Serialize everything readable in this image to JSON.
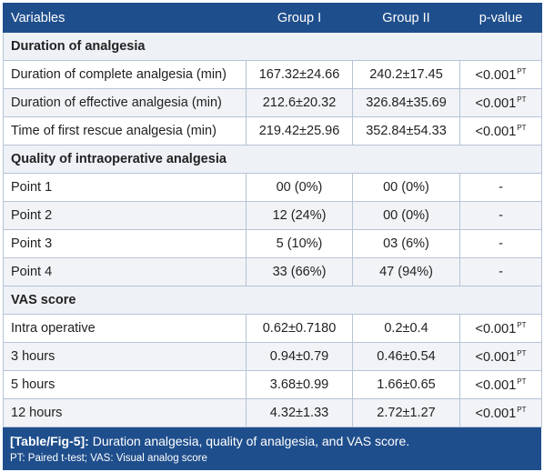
{
  "table": {
    "headers": [
      "Variables",
      "Group I",
      "Group II",
      "p-value"
    ],
    "rows": [
      {
        "type": "section",
        "label": "Duration of analgesia"
      },
      {
        "type": "data",
        "label": "Duration of complete analgesia (min)",
        "g1": "167.32±24.66",
        "g2": "240.2±17.45",
        "p": "<0.001",
        "p_sup": "PT"
      },
      {
        "type": "data",
        "label": "Duration of effective analgesia (min)",
        "g1": "212.6±20.32",
        "g2": "326.84±35.69",
        "p": "<0.001",
        "p_sup": "PT"
      },
      {
        "type": "data",
        "label": "Time of first rescue analgesia (min)",
        "g1": "219.42±25.96",
        "g2": "352.84±54.33",
        "p": "<0.001",
        "p_sup": "PT"
      },
      {
        "type": "section",
        "label": "Quality of intraoperative analgesia"
      },
      {
        "type": "data",
        "label": "Point 1",
        "g1": "00 (0%)",
        "g2": "00 (0%)",
        "p": "-",
        "p_sup": ""
      },
      {
        "type": "data",
        "label": "Point 2",
        "g1": "12 (24%)",
        "g2": "00 (0%)",
        "p": "-",
        "p_sup": ""
      },
      {
        "type": "data",
        "label": "Point 3",
        "g1": "5 (10%)",
        "g2": "03 (6%)",
        "p": "-",
        "p_sup": ""
      },
      {
        "type": "data",
        "label": "Point 4",
        "g1": "33 (66%)",
        "g2": "47 (94%)",
        "p": "-",
        "p_sup": ""
      },
      {
        "type": "section",
        "label": "VAS score"
      },
      {
        "type": "data",
        "label": "Intra operative",
        "g1": "0.62±0.7180",
        "g2": "0.2±0.4",
        "p": "<0.001",
        "p_sup": "PT"
      },
      {
        "type": "data",
        "label": "3 hours",
        "g1": "0.94±0.79",
        "g2": "0.46±0.54",
        "p": "<0.001",
        "p_sup": "PT"
      },
      {
        "type": "data",
        "label": "5 hours",
        "g1": "3.68±0.99",
        "g2": "1.66±0.65",
        "p": "<0.001",
        "p_sup": "PT"
      },
      {
        "type": "data",
        "label": "12 hours",
        "g1": "4.32±1.33",
        "g2": "2.72±1.27",
        "p": "<0.001",
        "p_sup": "PT"
      }
    ]
  },
  "caption": {
    "tag": "[Table/Fig-5]:",
    "text": " Duration analgesia, quality of analgesia, and VAS score.",
    "footnote": "PT: Paired t-test; VAS: Visual analog score"
  }
}
